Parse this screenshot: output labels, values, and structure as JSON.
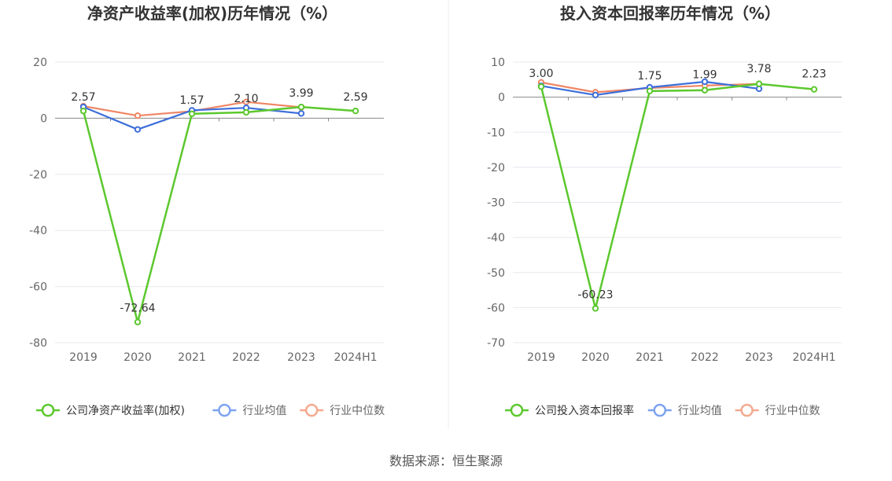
{
  "source": "数据来源：恒生聚源",
  "colors": {
    "company": "#5cc82e",
    "avg": "#3d6fdb",
    "median": "#ef8766",
    "legend_avg": "#7ea3ef",
    "legend_median": "#f4a98f"
  },
  "chart_data": [
    {
      "type": "line",
      "title": "净资产收益率(加权)历年情况（%）",
      "categories": [
        "2019",
        "2020",
        "2021",
        "2022",
        "2023",
        "2024H1"
      ],
      "ylim": [
        -80,
        20
      ],
      "yticks": [
        20,
        0,
        -20,
        -40,
        -60,
        -80
      ],
      "series": [
        {
          "name": "公司净资产收益率(加权)",
          "key": "company",
          "values": [
            2.57,
            -72.64,
            1.57,
            2.1,
            3.99,
            2.59
          ],
          "labels": [
            "2.57",
            "-72.64",
            "1.57",
            "2.10",
            "3.99",
            "2.59"
          ]
        },
        {
          "name": "行业均值",
          "key": "avg",
          "values": [
            4.0,
            -4.0,
            2.8,
            3.7,
            1.7,
            null
          ]
        },
        {
          "name": "行业中位数",
          "key": "median",
          "values": [
            4.3,
            0.9,
            2.5,
            5.8,
            3.9,
            null
          ]
        }
      ]
    },
    {
      "type": "line",
      "title": "投入资本回报率历年情况（%）",
      "categories": [
        "2019",
        "2020",
        "2021",
        "2022",
        "2023",
        "2024H1"
      ],
      "ylim": [
        -70,
        10
      ],
      "yticks": [
        10,
        0,
        -10,
        -20,
        -30,
        -40,
        -50,
        -60,
        -70
      ],
      "series": [
        {
          "name": "公司投入资本回报率",
          "key": "company",
          "values": [
            3.0,
            -60.23,
            1.75,
            1.99,
            3.78,
            2.23
          ],
          "labels": [
            "3.00",
            "-60.23",
            "1.75",
            "1.99",
            "3.78",
            "2.23"
          ]
        },
        {
          "name": "行业均值",
          "key": "avg",
          "values": [
            3.2,
            0.6,
            2.8,
            4.4,
            2.4,
            null
          ]
        },
        {
          "name": "行业中位数",
          "key": "median",
          "values": [
            4.2,
            1.4,
            2.6,
            3.3,
            3.8,
            null
          ]
        }
      ]
    }
  ]
}
